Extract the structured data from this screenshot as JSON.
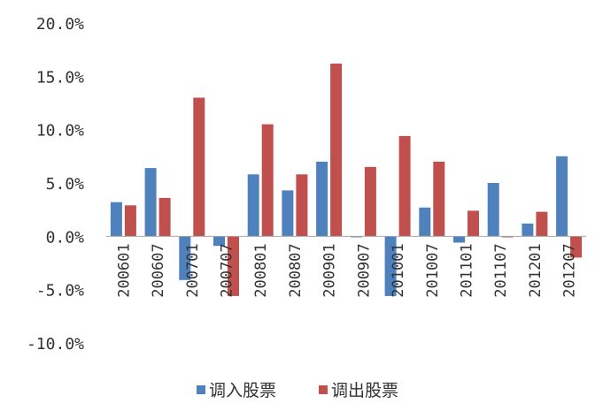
{
  "chart_data": {
    "type": "bar",
    "categories": [
      "200601",
      "200607",
      "200701",
      "200707",
      "200801",
      "200807",
      "200901",
      "200907",
      "201001",
      "201007",
      "201101",
      "201107",
      "201201",
      "201207"
    ],
    "series": [
      {
        "name": "调入股票",
        "color": "#4F81BD",
        "values": [
          3.2,
          6.4,
          -4.1,
          -0.9,
          5.8,
          4.3,
          7.0,
          -0.1,
          -5.6,
          2.7,
          -0.6,
          5.0,
          1.2,
          7.5
        ]
      },
      {
        "name": "调出股票",
        "color": "#C0504D",
        "values": [
          2.9,
          3.6,
          13.0,
          -5.6,
          10.5,
          5.8,
          16.2,
          6.5,
          9.4,
          7.0,
          2.4,
          -0.1,
          2.3,
          -2.0
        ]
      }
    ],
    "yticks": [
      "20.0%",
      "15.0%",
      "10.0%",
      "5.0%",
      "0.0%",
      "-5.0%",
      "-10.0%"
    ],
    "ylim": [
      -10,
      20
    ],
    "grid": false,
    "legend_position": "bottom"
  }
}
